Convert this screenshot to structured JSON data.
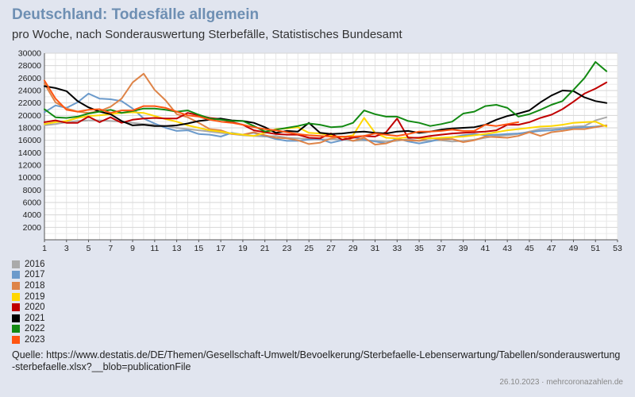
{
  "header": {
    "title": "Deutschland: Todesfälle allgemein",
    "subtitle": "pro Woche, nach Sonderauswertung Sterbefälle, Statistisches Bundesamt"
  },
  "source": "Quelle: https://www.destatis.de/DE/Themen/Gesellschaft-Umwelt/Bevoelkerung/Sterbefaelle-Lebenserwartung/Tabellen/sonderauswertung-sterbefaelle.xlsx?__blob=publicationFile",
  "footer": "26.10.2023 · mehrcoronazahlen.de",
  "chart_data": {
    "type": "line",
    "title": "Deutschland: Todesfälle allgemein",
    "subtitle": "pro Woche, nach Sonderauswertung Sterbefälle, Statistisches Bundesamt",
    "xlabel": "",
    "ylabel": "",
    "xlim": [
      1,
      53
    ],
    "ylim": [
      0,
      30000
    ],
    "x_ticks": [
      1,
      3,
      5,
      7,
      9,
      11,
      13,
      15,
      17,
      19,
      21,
      23,
      25,
      27,
      29,
      31,
      33,
      35,
      37,
      39,
      41,
      43,
      45,
      47,
      49,
      51,
      53
    ],
    "y_ticks": [
      2000,
      4000,
      6000,
      8000,
      10000,
      12000,
      14000,
      16000,
      18000,
      20000,
      22000,
      24000,
      26000,
      28000,
      30000
    ],
    "grid": true,
    "legend_position": "bottom-left",
    "series": [
      {
        "name": "2016",
        "color": "#aaaaaa",
        "values": [
          18400,
          18600,
          18900,
          19100,
          19200,
          19200,
          19100,
          19000,
          18800,
          18600,
          18500,
          18300,
          18000,
          17800,
          17600,
          17400,
          17200,
          17000,
          16800,
          16700,
          16600,
          16700,
          16400,
          16300,
          16200,
          16100,
          16200,
          16100,
          15900,
          16000,
          15900,
          15800,
          15900,
          16200,
          15900,
          16000,
          16000,
          15800,
          15900,
          16100,
          16400,
          16700,
          16800,
          17000,
          17400,
          17800,
          17900,
          18000,
          18200,
          18300,
          19200,
          19700
        ]
      },
      {
        "name": "2017",
        "color": "#6b9acb",
        "values": [
          20500,
          21600,
          21200,
          22100,
          23500,
          22700,
          22600,
          22300,
          21100,
          19500,
          18700,
          18000,
          17500,
          17600,
          17000,
          16900,
          16600,
          17200,
          16900,
          17200,
          16700,
          16200,
          15900,
          15900,
          16100,
          16200,
          15600,
          16000,
          16500,
          16100,
          15800,
          15500,
          16300,
          15800,
          15500,
          15800,
          16200,
          16500,
          16800,
          17000,
          16800,
          16900,
          17000,
          17100,
          17300,
          17500,
          17600,
          17800,
          18000,
          18100,
          18200,
          18400
        ]
      },
      {
        "name": "2018",
        "color": "#de8448",
        "values": [
          25100,
          22100,
          21100,
          20600,
          20400,
          20700,
          21400,
          22700,
          25300,
          26700,
          24100,
          22400,
          20200,
          19700,
          18800,
          17800,
          17600,
          17000,
          16900,
          17300,
          16800,
          16400,
          16300,
          16000,
          15400,
          15600,
          16300,
          16600,
          15900,
          16400,
          15300,
          15500,
          16100,
          16000,
          15900,
          16400,
          16100,
          16200,
          15700,
          16000,
          16600,
          16500,
          16400,
          16700,
          17300,
          16700,
          17300,
          17500,
          17800,
          17800,
          18100,
          18400
        ]
      },
      {
        "name": "2019",
        "color": "#ffd700",
        "values": [
          18600,
          18900,
          19100,
          19600,
          19900,
          20000,
          20200,
          20400,
          20500,
          20400,
          19900,
          19400,
          19000,
          18400,
          18000,
          17600,
          17400,
          17100,
          16900,
          16700,
          17200,
          17800,
          17900,
          18100,
          17200,
          17100,
          16800,
          16500,
          16800,
          19600,
          17200,
          16400,
          16300,
          16500,
          16300,
          16300,
          16400,
          16500,
          16600,
          16800,
          17000,
          17300,
          17600,
          17800,
          18000,
          18200,
          18300,
          18500,
          18800,
          18900,
          19000,
          18200
        ]
      },
      {
        "name": "2020",
        "color": "#c00000",
        "values": [
          18900,
          19200,
          18800,
          18800,
          19800,
          18900,
          19700,
          18800,
          19300,
          19500,
          19600,
          19500,
          19500,
          20400,
          20000,
          19600,
          19400,
          18900,
          18500,
          17600,
          17300,
          17000,
          16900,
          16900,
          16400,
          16300,
          17100,
          16100,
          16400,
          16700,
          16600,
          17300,
          19500,
          16400,
          16400,
          16700,
          16900,
          17100,
          17200,
          17300,
          17400,
          17600,
          18500,
          18500,
          18900,
          19600,
          20100,
          21000,
          22200,
          23500,
          24300,
          25300
        ]
      },
      {
        "name": "2021",
        "color": "#000000",
        "values": [
          24700,
          24400,
          23900,
          22300,
          21300,
          20600,
          20200,
          19100,
          18400,
          18500,
          18300,
          18300,
          18400,
          18700,
          19100,
          19300,
          19500,
          19200,
          19100,
          18800,
          18100,
          17200,
          17500,
          17400,
          18800,
          17200,
          17000,
          17100,
          17300,
          17400,
          17200,
          17100,
          17400,
          17500,
          17200,
          17400,
          17700,
          17900,
          18000,
          18100,
          18500,
          19300,
          19900,
          20300,
          20800,
          22100,
          23200,
          24000,
          23900,
          22900,
          22300,
          22000
        ]
      },
      {
        "name": "2022",
        "color": "#138a13",
        "values": [
          21000,
          19700,
          19600,
          19800,
          20300,
          20600,
          20900,
          20400,
          20700,
          21100,
          21100,
          20900,
          20600,
          20800,
          20100,
          19500,
          19300,
          19100,
          19100,
          18300,
          17400,
          17700,
          18000,
          18300,
          18700,
          18500,
          18100,
          18200,
          18800,
          20800,
          20200,
          19800,
          19800,
          19100,
          18800,
          18300,
          18600,
          19000,
          20300,
          20600,
          21500,
          21700,
          21200,
          19800,
          20200,
          20900,
          21700,
          22300,
          24100,
          26000,
          28600,
          27100
        ]
      },
      {
        "name": "2023",
        "color": "#ff5511",
        "values": [
          25600,
          22700,
          20900,
          20600,
          20900,
          21000,
          20400,
          20800,
          20800,
          21500,
          21500,
          21200,
          20600,
          20000,
          19800,
          19300,
          19000,
          18800,
          18500,
          18100,
          17800,
          17600,
          17300,
          17000,
          16800,
          16700,
          16600,
          16600,
          16600,
          16700,
          17100,
          16900,
          16700,
          17000,
          17400,
          17400,
          17500,
          17700,
          17500,
          17500,
          18500,
          18300,
          18600,
          18900,
          null,
          null,
          null,
          null,
          null,
          null,
          null,
          null
        ]
      }
    ]
  }
}
